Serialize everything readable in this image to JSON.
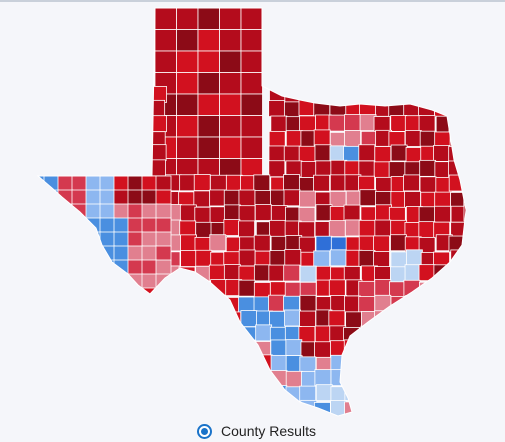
{
  "view": {
    "option_label": "County Results",
    "option_selected": true
  },
  "colors": {
    "r_dark": "#8c0b17",
    "r_strong": "#b40c1c",
    "r_medium": "#d2111f",
    "r_lean": "#d4394f",
    "r_light": "#e17f8f",
    "d_light": "#bcd5f3",
    "d_lean": "#8db7f0",
    "d_strong": "#4a8fe0",
    "d_dark": "#2f6fd8",
    "border": "#ffffff",
    "map_bg": "#f5f6fa"
  },
  "legend_icons": {
    "radio": "radio-selected-icon"
  }
}
